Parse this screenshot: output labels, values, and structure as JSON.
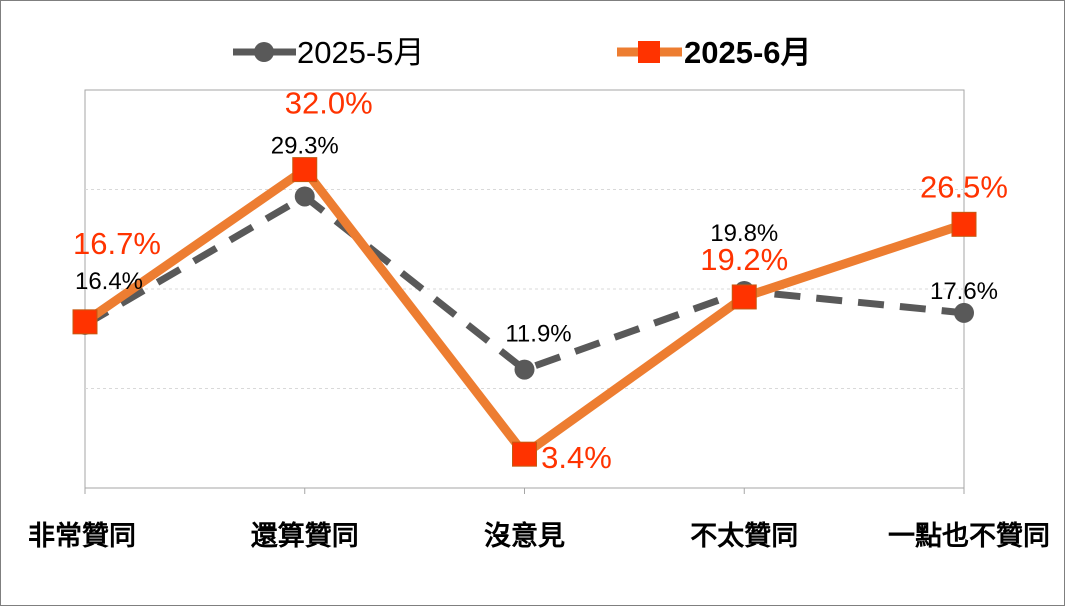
{
  "chart_data": {
    "type": "line",
    "title": "",
    "xlabel": "",
    "ylabel": "",
    "categories": [
      "非常贊同",
      "還算贊同",
      "沒意見",
      "不太贊同",
      "一點也不贊同"
    ],
    "ylim": [
      0,
      40
    ],
    "grid": true,
    "legend": "top",
    "series": [
      {
        "name": "2025-5月",
        "values": [
          16.4,
          29.3,
          11.9,
          19.8,
          17.6
        ],
        "labels": [
          "16.4%",
          "29.3%",
          "11.9%",
          "19.8%",
          "17.6%"
        ],
        "color": "#595959",
        "style": "dashed",
        "marker": "circle"
      },
      {
        "name": "2025-6月",
        "values": [
          16.7,
          32.0,
          3.4,
          19.2,
          26.5
        ],
        "labels": [
          "16.7%",
          "32.0%",
          "3.4%",
          "19.2%",
          "26.5%"
        ],
        "color": "#ED7D31",
        "marker_color": "#FF3300",
        "label_color": "#FF3300",
        "style": "solid",
        "marker": "square"
      }
    ]
  }
}
